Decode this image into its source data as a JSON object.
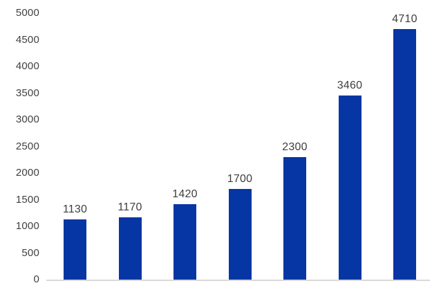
{
  "chart_data": {
    "type": "bar",
    "title": "",
    "xlabel": "",
    "ylabel": "",
    "values": [
      1130,
      1170,
      1420,
      1700,
      2300,
      3460,
      4710
    ],
    "data_labels": [
      "1130",
      "1170",
      "1420",
      "1700",
      "2300",
      "3460",
      "4710"
    ],
    "y_ticks": [
      0,
      500,
      1000,
      1500,
      2000,
      2500,
      3000,
      3500,
      4000,
      4500,
      5000
    ],
    "y_tick_labels": [
      "0",
      "500",
      "1000",
      "1500",
      "2000",
      "2500",
      "3000",
      "3500",
      "4000",
      "4500",
      "5000"
    ],
    "ylim": [
      0,
      5000
    ],
    "grid": "off",
    "legend": "none",
    "x_category_labels_visible": false,
    "colors": {
      "bar": "#0636a4",
      "tick_label": "#404040",
      "data_label": "#3d3d3d",
      "axis_line": "#d9d9d9",
      "background": "#ffffff"
    }
  }
}
